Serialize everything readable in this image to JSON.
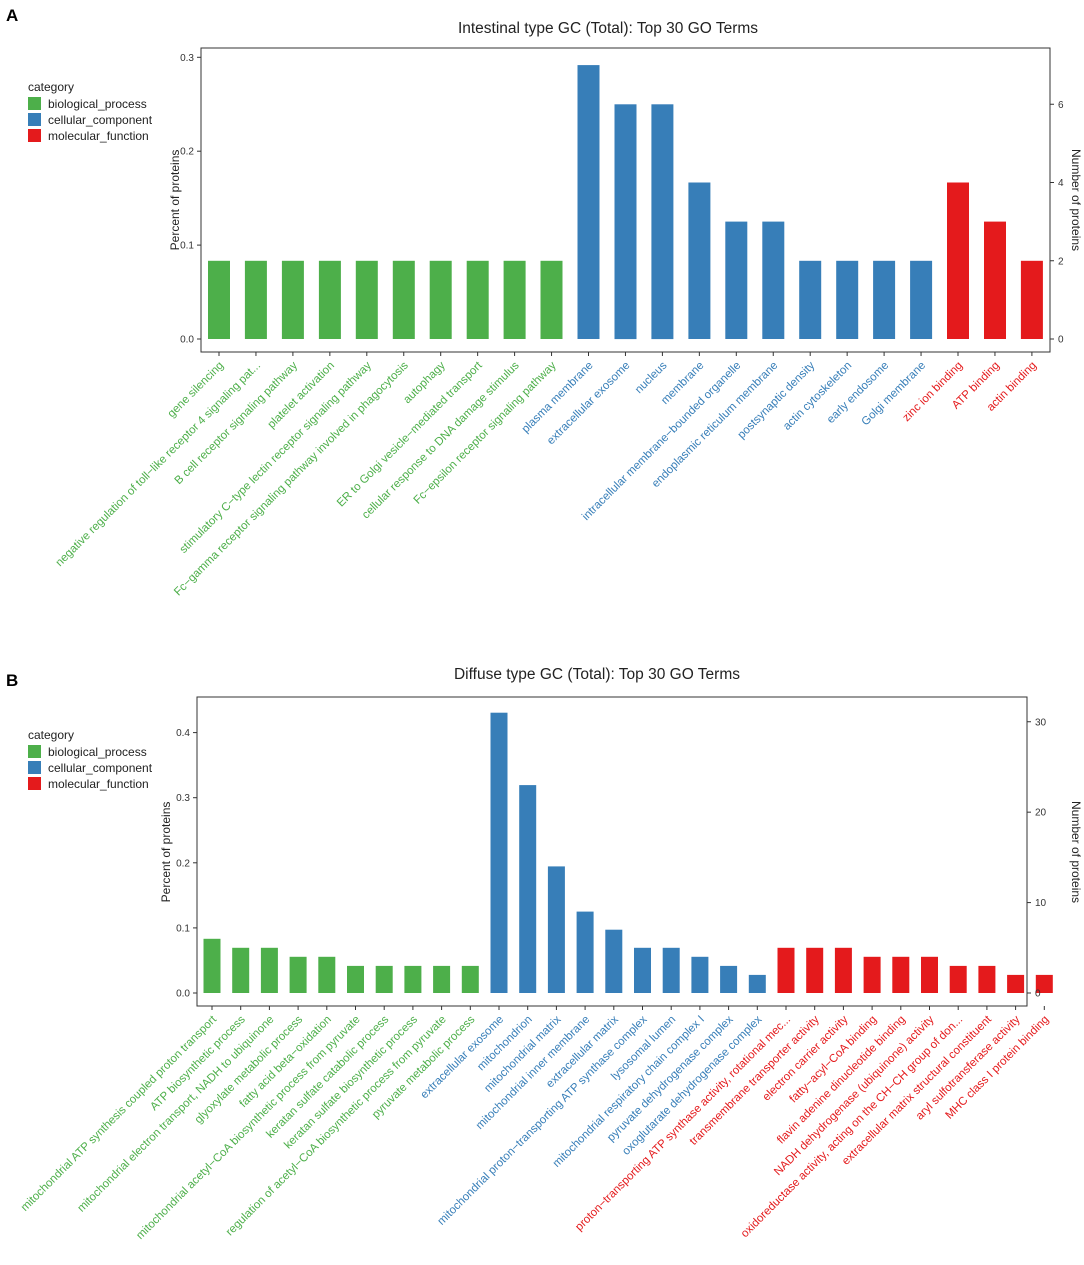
{
  "colors": {
    "biological_process": "#4DAF4A",
    "cellular_component": "#377EB8",
    "molecular_function": "#E41A1C",
    "axis": "#222222",
    "background": "#ffffff"
  },
  "legend": {
    "title": "category",
    "items": [
      {
        "key": "biological_process",
        "label": "biological_process"
      },
      {
        "key": "cellular_component",
        "label": "cellular_component"
      },
      {
        "key": "molecular_function",
        "label": "molecular_function"
      }
    ]
  },
  "chart_data": [
    {
      "panel_label": "A",
      "type": "bar",
      "title": "Intestinal type GC (Total): Top 30 GO Terms",
      "ylabel": "Percent of proteins",
      "y2label": "Number of proteins",
      "ylim": [
        0,
        0.3
      ],
      "yticks": [
        0.0,
        0.1,
        0.2,
        0.3
      ],
      "ytick_labels": [
        "0.0",
        "0.1",
        "0.2",
        "0.3"
      ],
      "y2ticks": [
        0,
        2,
        4,
        6
      ],
      "y2_scale": 24,
      "categories": [
        "gene silencing",
        "negative regulation of toll−like receptor 4 signaling pat...",
        "B cell receptor signaling pathway",
        "platelet activation",
        "stimulatory C−type lectin receptor signaling pathway",
        "Fc−gamma receptor signaling pathway involved in phagocytosis",
        "autophagy",
        "ER to Golgi vesicle−mediated transport",
        "cellular response to DNA damage stimulus",
        "Fc−epsilon receptor signaling pathway",
        "plasma membrane",
        "extracellular exosome",
        "nucleus",
        "membrane",
        "intracellular membrane−bounded organelle",
        "endoplasmic reticulum membrane",
        "postsynaptic density",
        "actin cytoskeleton",
        "early endosome",
        "Golgi membrane",
        "zinc ion binding",
        "ATP binding",
        "actin binding"
      ],
      "values": [
        0.0833,
        0.0833,
        0.0833,
        0.0833,
        0.0833,
        0.0833,
        0.0833,
        0.0833,
        0.0833,
        0.0833,
        0.2917,
        0.25,
        0.25,
        0.1667,
        0.125,
        0.125,
        0.0833,
        0.0833,
        0.0833,
        0.0833,
        0.1667,
        0.125,
        0.0833
      ],
      "counts": [
        2,
        2,
        2,
        2,
        2,
        2,
        2,
        2,
        2,
        2,
        7,
        6,
        6,
        4,
        3,
        3,
        2,
        2,
        2,
        2,
        4,
        3,
        2
      ],
      "category_types": [
        "biological_process",
        "biological_process",
        "biological_process",
        "biological_process",
        "biological_process",
        "biological_process",
        "biological_process",
        "biological_process",
        "biological_process",
        "biological_process",
        "cellular_component",
        "cellular_component",
        "cellular_component",
        "cellular_component",
        "cellular_component",
        "cellular_component",
        "cellular_component",
        "cellular_component",
        "cellular_component",
        "cellular_component",
        "molecular_function",
        "molecular_function",
        "molecular_function"
      ]
    },
    {
      "panel_label": "B",
      "type": "bar",
      "title": "Diffuse type GC (Total): Top 30 GO Terms",
      "ylabel": "Percent of proteins",
      "y2label": "Number of proteins",
      "ylim": [
        0,
        0.43
      ],
      "yticks": [
        0.0,
        0.1,
        0.2,
        0.3,
        0.4
      ],
      "ytick_labels": [
        "0.0",
        "0.1",
        "0.2",
        "0.3",
        "0.4"
      ],
      "y2ticks": [
        0,
        10,
        20,
        30
      ],
      "y2_scale": 72,
      "categories": [
        "mitochondrial ATP synthesis coupled proton transport",
        "ATP biosynthetic process",
        "mitochondrial electron transport, NADH to ubiquinone",
        "glyoxylate metabolic process",
        "fatty acid beta−oxidation",
        "mitochondrial acetyl−CoA biosynthetic process from pyruvate",
        "keratan sulfate catabolic process",
        "keratan sulfate biosynthetic process",
        "regulation of acetyl−CoA biosynthetic process from pyruvate",
        "pyruvate metabolic process",
        "extracellular exosome",
        "mitochondrion",
        "mitochondrial matrix",
        "mitochondrial inner membrane",
        "extracellular matrix",
        "mitochondrial proton−transporting ATP synthase complex",
        "lysosomal lumen",
        "mitochondrial respiratory chain complex I",
        "pyruvate dehydrogenase complex",
        "oxoglutarate dehydrogenase complex",
        "proton−transporting ATP synthase activity, rotational mec...",
        "transmembrane transporter activity",
        "electron carrier activity",
        "fatty−acyl−CoA binding",
        "flavin adenine dinucleotide binding",
        "NADH dehydrogenase (ubiquinone) activity",
        "oxidoreductase activity, acting on the CH−CH group of don...",
        "extracellular matrix structural constituent",
        "aryl sulfotransferase activity",
        "MHC class I protein binding"
      ],
      "values": [
        0.0833,
        0.0694,
        0.0694,
        0.0556,
        0.0556,
        0.0417,
        0.0417,
        0.0417,
        0.0417,
        0.0417,
        0.4306,
        0.3194,
        0.1944,
        0.125,
        0.0972,
        0.0694,
        0.0694,
        0.0556,
        0.0417,
        0.0278,
        0.0694,
        0.0694,
        0.0694,
        0.0556,
        0.0556,
        0.0556,
        0.0417,
        0.0417,
        0.0278,
        0.0278
      ],
      "counts": [
        6,
        5,
        5,
        4,
        4,
        3,
        3,
        3,
        3,
        3,
        31,
        23,
        14,
        9,
        7,
        5,
        5,
        4,
        3,
        2,
        5,
        5,
        5,
        4,
        4,
        4,
        3,
        3,
        2,
        2
      ],
      "category_types": [
        "biological_process",
        "biological_process",
        "biological_process",
        "biological_process",
        "biological_process",
        "biological_process",
        "biological_process",
        "biological_process",
        "biological_process",
        "biological_process",
        "cellular_component",
        "cellular_component",
        "cellular_component",
        "cellular_component",
        "cellular_component",
        "cellular_component",
        "cellular_component",
        "cellular_component",
        "cellular_component",
        "cellular_component",
        "molecular_function",
        "molecular_function",
        "molecular_function",
        "molecular_function",
        "molecular_function",
        "molecular_function",
        "molecular_function",
        "molecular_function",
        "molecular_function",
        "molecular_function"
      ]
    }
  ]
}
